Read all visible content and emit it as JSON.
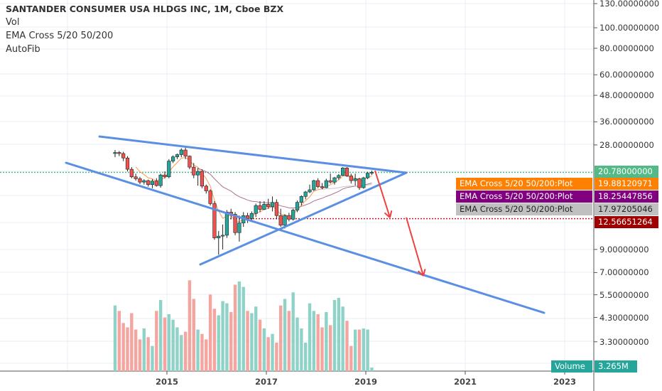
{
  "legend": {
    "title": "SANTANDER CONSUMER USA HLDGS INC, 1M, Cboe BZX",
    "indicators": [
      "Vol",
      "EMA Cross 5/20 50/200",
      "AutoFib"
    ]
  },
  "price_axis": {
    "scale": "log",
    "ticks": [
      "130.00000000",
      "100.00000000",
      "80.00000000",
      "60.00000000",
      "48.00000000",
      "36.00000000",
      "28.00000000",
      "9.00000000",
      "7.00000000",
      "5.50000000",
      "4.30000000",
      "3.30000000"
    ],
    "tick_values": [
      130,
      100,
      80,
      60,
      48,
      36,
      28,
      9,
      7,
      5.5,
      4.3,
      3.3
    ]
  },
  "time_axis": {
    "ticks": [
      "2015",
      "2017",
      "2019",
      "2021",
      "2023"
    ]
  },
  "tags": {
    "last_price": {
      "value": "20.78000000",
      "color": "#53b987"
    },
    "ema1": {
      "label": "EMA Cross 5/20 50/200:Plot",
      "value": "19.88120971",
      "color": "#ff7f00"
    },
    "ema2": {
      "label": "EMA Cross 5/20 50/200:Plot",
      "value": "18.25447856",
      "color": "#800080"
    },
    "ema3": {
      "label": "EMA Cross 5/20 50/200:Plot",
      "value": "17.97205046",
      "color": "#c0c0c0"
    },
    "target": {
      "value": "12.56651264",
      "color": "#a00000"
    },
    "volume": {
      "label": "Volume",
      "value": "3.265M",
      "color": "#26a69a"
    }
  },
  "colors": {
    "up": "#26a69a",
    "down": "#ef5350",
    "vol_up": "#8fd3c8",
    "vol_down": "#f5a5a0",
    "trendline": "#5b8fe3",
    "arrow": "#f04040"
  },
  "chart_data": {
    "type": "candlestick",
    "start": "2014-01",
    "interval": "1M",
    "ohlc": [
      [
        25.5,
        26.5,
        24.5,
        25.8
      ],
      [
        25.8,
        26.2,
        24.8,
        25.5
      ],
      [
        25.5,
        26,
        23.5,
        24.3
      ],
      [
        24.3,
        24.8,
        21,
        21.5
      ],
      [
        21.5,
        22,
        19.5,
        19.8
      ],
      [
        19.8,
        20.5,
        19,
        19.4
      ],
      [
        19.4,
        19.8,
        18.3,
        18.7
      ],
      [
        18.7,
        19.3,
        18.2,
        19
      ],
      [
        19,
        19.2,
        17.8,
        18.2
      ],
      [
        18.2,
        19.3,
        17.5,
        18.9
      ],
      [
        18.9,
        19.5,
        17.8,
        18
      ],
      [
        18,
        20.5,
        17.6,
        20.2
      ],
      [
        20.2,
        21,
        19.5,
        19.8
      ],
      [
        19.8,
        24,
        19.5,
        23.5
      ],
      [
        23.5,
        25,
        23,
        24.6
      ],
      [
        24.6,
        25.5,
        24,
        25.2
      ],
      [
        25.2,
        27,
        24.5,
        26.5
      ],
      [
        26.5,
        27.2,
        24,
        24.8
      ],
      [
        24.8,
        25,
        21.5,
        22
      ],
      [
        22,
        23,
        19.5,
        20.2
      ],
      [
        20.2,
        21.8,
        18,
        21
      ],
      [
        21,
        21.5,
        17.5,
        17.9
      ],
      [
        17.9,
        18.2,
        16.5,
        17
      ],
      [
        17,
        17.3,
        14.5,
        14.8
      ],
      [
        14.8,
        15.2,
        10,
        10.2
      ],
      [
        10.2,
        11,
        8.5,
        10.4
      ],
      [
        10.4,
        11.8,
        9,
        10.5
      ],
      [
        10.5,
        13.8,
        10.2,
        13.5
      ],
      [
        13.5,
        14,
        12.5,
        13.2
      ],
      [
        13.2,
        13.5,
        10.5,
        10.8
      ],
      [
        10.8,
        13,
        9.8,
        12
      ],
      [
        12,
        13.5,
        11.5,
        13
      ],
      [
        13,
        13.4,
        12,
        12.6
      ],
      [
        12.6,
        13.6,
        12.2,
        13.3
      ],
      [
        13.3,
        14.8,
        12.8,
        14.5
      ],
      [
        14.5,
        15.2,
        13.5,
        13.9
      ],
      [
        13.9,
        15.2,
        13.8,
        14.7
      ],
      [
        14.7,
        15.6,
        14,
        14.3
      ],
      [
        14.3,
        16,
        13.6,
        15
      ],
      [
        15,
        15.5,
        12.5,
        13
      ],
      [
        13,
        14,
        11.5,
        11.7
      ],
      [
        11.7,
        13.2,
        11.3,
        13
      ],
      [
        13,
        13.4,
        12.2,
        12.5
      ],
      [
        12.5,
        14,
        12.3,
        13.8
      ],
      [
        13.8,
        15.3,
        13.5,
        15
      ],
      [
        15,
        16.2,
        14.5,
        16
      ],
      [
        16,
        17,
        15.5,
        16.8
      ],
      [
        16.8,
        18.2,
        16.6,
        17.2
      ],
      [
        17.2,
        19.2,
        17,
        19
      ],
      [
        19,
        19.5,
        17.5,
        17.8
      ],
      [
        17.8,
        18.5,
        17.3,
        17.6
      ],
      [
        17.6,
        19.4,
        17.5,
        19
      ],
      [
        19,
        20.5,
        18.4,
        18.7
      ],
      [
        18.7,
        19.8,
        18.2,
        19.6
      ],
      [
        19.6,
        20.4,
        19.2,
        20.1
      ],
      [
        20.1,
        22,
        20,
        21.8
      ],
      [
        21.8,
        22,
        19.8,
        20
      ],
      [
        20,
        20.5,
        18.4,
        19
      ],
      [
        19,
        20.5,
        18,
        19.4
      ],
      [
        19.4,
        19.6,
        17.2,
        17.6
      ],
      [
        17.6,
        19.8,
        17.4,
        19.6
      ],
      [
        19.6,
        20.9,
        19.3,
        20.6
      ],
      [
        20.6,
        21.2,
        20.2,
        20.78
      ]
    ],
    "volume_millions": [
      60,
      55,
      44,
      40,
      53,
      38,
      29,
      39,
      31,
      23,
      55,
      65,
      49,
      52,
      47,
      40,
      33,
      36,
      83,
      66,
      38,
      34,
      29,
      70,
      57,
      51,
      64,
      62,
      54,
      79,
      82,
      77,
      55,
      53,
      59,
      47,
      39,
      31,
      34,
      26,
      60,
      66,
      55,
      72,
      49,
      39,
      26,
      62,
      55,
      52,
      40,
      54,
      42,
      65,
      67,
      59,
      46,
      23,
      38,
      38,
      39,
      38,
      3.265
    ]
  }
}
